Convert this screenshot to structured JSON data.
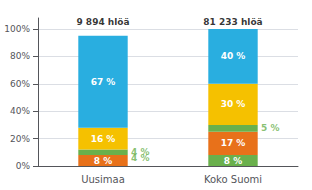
{
  "chart_data": {
    "type": "bar",
    "stacked": true,
    "categories": [
      "Uusimaa",
      "Koko Suomi"
    ],
    "series": [
      {
        "values": [
          8,
          8
        ],
        "colors": [
          "#e8711a",
          "#6ab04c"
        ],
        "value_labels": [
          "8 %",
          "8 %"
        ]
      },
      {
        "values": [
          4,
          17
        ],
        "colors": [
          "#6ab04c",
          "#e8711a"
        ],
        "value_labels": [
          null,
          "17 %"
        ]
      },
      {
        "values": [
          16,
          5
        ],
        "colors": [
          "#f5c100",
          "#6ab04c"
        ],
        "value_labels": [
          "16 %",
          null
        ]
      },
      {
        "values": [
          67,
          30
        ],
        "colors": [
          "#29aee0",
          "#f5c100"
        ],
        "value_labels": [
          "67 %",
          "30 %"
        ]
      },
      {
        "values": [
          null,
          40
        ],
        "colors": [
          null,
          "#29aee0"
        ],
        "value_labels": [
          null,
          "40 %"
        ]
      }
    ],
    "annotations": [
      {
        "text": "4 %",
        "x": "Uusimaa",
        "y": 10,
        "color": "#6ab04c"
      },
      {
        "text": "4 %",
        "x": "Uusimaa",
        "y": 6,
        "color": "#6ab04c"
      },
      {
        "text": "5 %",
        "x": "Koko Suomi",
        "y": 27.5,
        "color": "#6ab04c"
      }
    ],
    "top_labels": [
      "9 894 hlöä",
      "81 233 hlöä"
    ],
    "ylim": [
      0,
      108
    ],
    "yticks": [
      {
        "value": 0,
        "label": "0%"
      },
      {
        "value": 20,
        "label": "20%"
      },
      {
        "value": 40,
        "label": "40%"
      },
      {
        "value": 60,
        "label": "60%"
      },
      {
        "value": 80,
        "label": "80%"
      },
      {
        "value": 100,
        "label": "100%"
      }
    ],
    "grid": true
  }
}
